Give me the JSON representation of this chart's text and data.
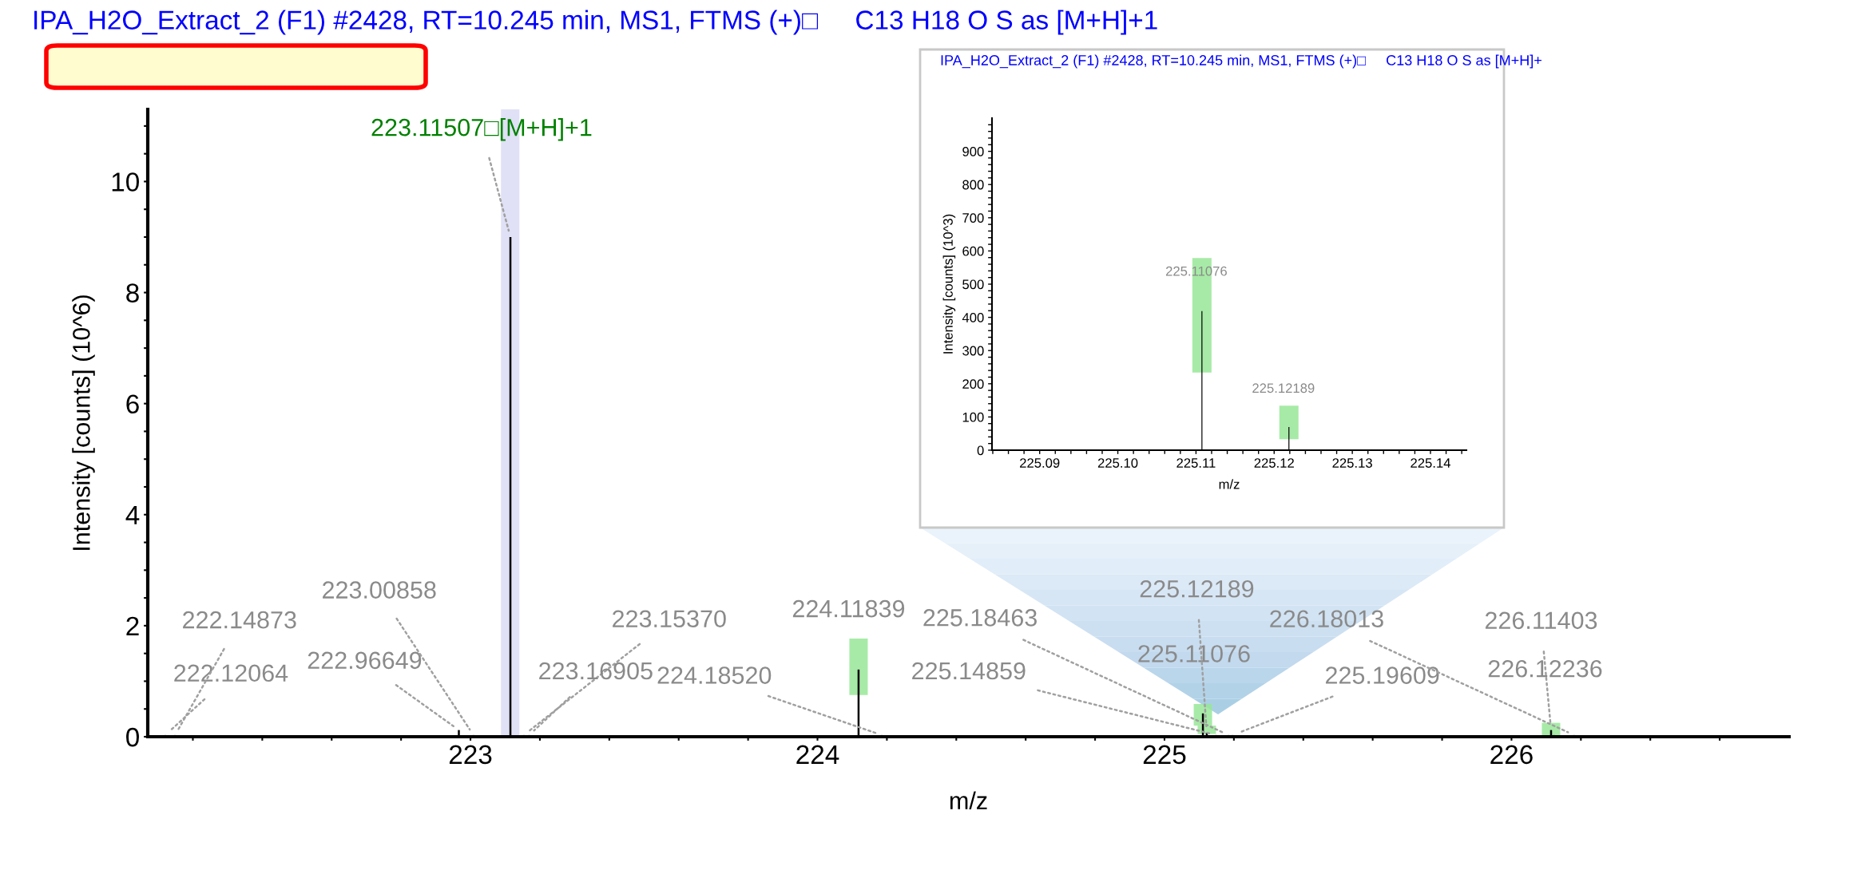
{
  "chart_data": [
    {
      "type": "bar",
      "title": "IPA_H2O_Extract_2 (F1) #2428, RT=10.245 min, MS1, FTMS (+)□     C13 H18 O S as [M+H]+1",
      "xlabel": "m/z",
      "ylabel": "Intensity [counts] (10^6)",
      "xlim": [
        222.07,
        226.8
      ],
      "ylim": [
        0,
        11.3
      ],
      "xticks": [
        {
          "value": 222.2,
          "label": null
        },
        {
          "value": 222.4,
          "label": null
        },
        {
          "value": 222.6,
          "label": null
        },
        {
          "value": 222.8,
          "label": null
        },
        223,
        {
          "value": 223.2,
          "label": null
        },
        {
          "value": 223.4,
          "label": null
        },
        {
          "value": 223.6,
          "label": null
        },
        {
          "value": 223.8,
          "label": null
        },
        224,
        {
          "value": 224.2,
          "label": null
        },
        {
          "value": 224.4,
          "label": null
        },
        {
          "value": 224.6,
          "label": null
        },
        {
          "value": 224.8,
          "label": null
        },
        225,
        {
          "value": 225.2,
          "label": null
        },
        {
          "value": 225.4,
          "label": null
        },
        {
          "value": 225.6,
          "label": null
        },
        {
          "value": 225.8,
          "label": null
        },
        226,
        {
          "value": 226.2,
          "label": null
        },
        {
          "value": 226.4,
          "label": null
        },
        {
          "value": 226.6,
          "label": null
        }
      ],
      "yticks": [
        0,
        {
          "value": 0.5,
          "label": null
        },
        {
          "value": 1,
          "label": null
        },
        {
          "value": 1.5,
          "label": null
        },
        2,
        {
          "value": 2.5,
          "label": null
        },
        {
          "value": 3,
          "label": null
        },
        {
          "value": 3.5,
          "label": null
        },
        4,
        {
          "value": 4.5,
          "label": null
        },
        {
          "value": 5,
          "label": null
        },
        {
          "value": 5.5,
          "label": null
        },
        6,
        {
          "value": 6.5,
          "label": null
        },
        {
          "value": 7,
          "label": null
        },
        {
          "value": 7.5,
          "label": null
        },
        8,
        {
          "value": 8.5,
          "label": null
        },
        {
          "value": 9,
          "label": null
        },
        {
          "value": 9.5,
          "label": null
        },
        10,
        {
          "value": 10.5,
          "label": null
        },
        {
          "value": 11,
          "label": null
        }
      ],
      "bands": [
        {
          "axis": "x",
          "from": 223.088,
          "to": 223.141,
          "color": "#e0e0f6"
        }
      ],
      "series": [
        {
          "color": "#98e698",
          "x": [
            224.11839,
            225.11076,
            225.12189,
            226.11403
          ],
          "base": [
            0.75,
            0.2,
            0.05,
            0.0
          ],
          "values": [
            1.02,
            0.39,
            0.15,
            0.25
          ]
        },
        {
          "color": "#000000",
          "x": [
            222.12064,
            222.14873,
            222.96649,
            223.00858,
            223.11507,
            223.1537,
            223.16905,
            224.11839,
            224.1852,
            225.11076,
            225.12189,
            225.14859,
            225.18463,
            225.19609,
            226.11403,
            226.12236,
            226.18013
          ],
          "values": [
            0.03,
            0.03,
            0.12,
            0.03,
            9.0,
            0.03,
            0.03,
            1.21,
            0.03,
            0.42,
            0.07,
            0.03,
            0.03,
            0.03,
            0.12,
            0.03,
            0.03
          ]
        }
      ],
      "annotations": [
        {
          "text": "222.12064",
          "x": 222.12064,
          "y": 0.03
        },
        {
          "text": "222.14873",
          "x": 222.14873,
          "y": 0.03
        },
        {
          "text": "222.96649",
          "x": 222.96649,
          "y": 0.12
        },
        {
          "text": "223.00858",
          "x": 223.00858,
          "y": 0.03
        },
        {
          "text": "223.11507□[M+H]+1",
          "x": 223.11507,
          "y": 9.0
        },
        {
          "text": "223.15370",
          "x": 223.1537,
          "y": 0.03
        },
        {
          "text": "223.16905",
          "x": 223.16905,
          "y": 0.03
        },
        {
          "text": "224.11839",
          "x": 224.11839,
          "y": 1.21
        },
        {
          "text": "224.18520",
          "x": 224.1852,
          "y": 0.03
        },
        {
          "text": "225.11076",
          "x": 225.11076,
          "y": 0.42
        },
        {
          "text": "225.12189",
          "x": 225.12189,
          "y": 0.07
        },
        {
          "text": "225.14859",
          "x": 225.14859,
          "y": 0.03
        },
        {
          "text": "225.18463",
          "x": 225.18463,
          "y": 0.03
        },
        {
          "text": "225.19609",
          "x": 225.19609,
          "y": 0.03
        },
        {
          "text": "226.11403",
          "x": 226.11403,
          "y": 0.12
        },
        {
          "text": "226.12236",
          "x": 226.12236,
          "y": 0.03
        },
        {
          "text": "226.18013",
          "x": 226.18013,
          "y": 0.03
        }
      ]
    },
    {
      "type": "bar",
      "title": "IPA_H2O_Extract_2 (F1) #2428, RT=10.245 min, MS1, FTMS (+)□     C13 H18 O S as [M+H]+",
      "xlabel": "m/z",
      "ylabel": "Intensity [counts] (10^3)",
      "xlim": [
        225.0839,
        225.1446
      ],
      "ylim": [
        0,
        1000
      ],
      "xticks": [
        {
          "value": 225.084,
          "label": null
        },
        {
          "value": 225.086,
          "label": null
        },
        {
          "value": 225.088,
          "label": null
        },
        {
          "value": 225.09,
          "label": "225.09"
        },
        {
          "value": 225.092,
          "label": null
        },
        {
          "value": 225.094,
          "label": null
        },
        {
          "value": 225.096,
          "label": null
        },
        {
          "value": 225.098,
          "label": null
        },
        {
          "value": 225.1,
          "label": "225.10"
        },
        {
          "value": 225.102,
          "label": null
        },
        {
          "value": 225.104,
          "label": null
        },
        {
          "value": 225.106,
          "label": null
        },
        {
          "value": 225.108,
          "label": null
        },
        {
          "value": 225.11,
          "label": "225.11"
        },
        {
          "value": 225.112,
          "label": null
        },
        {
          "value": 225.114,
          "label": null
        },
        {
          "value": 225.116,
          "label": null
        },
        {
          "value": 225.118,
          "label": null
        },
        {
          "value": 225.12,
          "label": "225.12"
        },
        {
          "value": 225.122,
          "label": null
        },
        {
          "value": 225.124,
          "label": null
        },
        {
          "value": 225.126,
          "label": null
        },
        {
          "value": 225.128,
          "label": null
        },
        {
          "value": 225.13,
          "label": "225.13"
        },
        {
          "value": 225.132,
          "label": null
        },
        {
          "value": 225.134,
          "label": null
        },
        {
          "value": 225.136,
          "label": null
        },
        {
          "value": 225.138,
          "label": null
        },
        {
          "value": 225.14,
          "label": "225.14"
        },
        {
          "value": 225.142,
          "label": null
        },
        {
          "value": 225.144,
          "label": null
        }
      ],
      "yticks": [
        0,
        {
          "value": 20,
          "label": null
        },
        {
          "value": 40,
          "label": null
        },
        {
          "value": 60,
          "label": null
        },
        {
          "value": 80,
          "label": null
        },
        100,
        {
          "value": 120,
          "label": null
        },
        {
          "value": 140,
          "label": null
        },
        {
          "value": 160,
          "label": null
        },
        {
          "value": 180,
          "label": null
        },
        200,
        {
          "value": 220,
          "label": null
        },
        {
          "value": 240,
          "label": null
        },
        {
          "value": 260,
          "label": null
        },
        {
          "value": 280,
          "label": null
        },
        300,
        {
          "value": 320,
          "label": null
        },
        {
          "value": 340,
          "label": null
        },
        {
          "value": 360,
          "label": null
        },
        {
          "value": 380,
          "label": null
        },
        400,
        {
          "value": 420,
          "label": null
        },
        {
          "value": 440,
          "label": null
        },
        {
          "value": 460,
          "label": null
        },
        {
          "value": 480,
          "label": null
        },
        500,
        {
          "value": 520,
          "label": null
        },
        {
          "value": 540,
          "label": null
        },
        {
          "value": 560,
          "label": null
        },
        {
          "value": 580,
          "label": null
        },
        600,
        {
          "value": 620,
          "label": null
        },
        {
          "value": 640,
          "label": null
        },
        {
          "value": 660,
          "label": null
        },
        {
          "value": 680,
          "label": null
        },
        700,
        {
          "value": 720,
          "label": null
        },
        {
          "value": 740,
          "label": null
        },
        {
          "value": 760,
          "label": null
        },
        {
          "value": 780,
          "label": null
        },
        800,
        {
          "value": 820,
          "label": null
        },
        {
          "value": 840,
          "label": null
        },
        {
          "value": 860,
          "label": null
        },
        {
          "value": 880,
          "label": null
        },
        900,
        {
          "value": 920,
          "label": null
        },
        {
          "value": 940,
          "label": null
        },
        {
          "value": 960,
          "label": null
        },
        {
          "value": 980,
          "label": null
        }
      ],
      "series": [
        {
          "color": "#98e698",
          "x": [
            225.11076,
            225.12189
          ],
          "base": [
            234,
            33
          ],
          "values": [
            345,
            101
          ]
        },
        {
          "color": "#000000",
          "x": [
            225.11076,
            225.12189
          ],
          "values": [
            419,
            70
          ]
        }
      ],
      "annotations": [
        {
          "text": "225.11076",
          "x": 225.11076,
          "y": 419
        },
        {
          "text": "225.12189",
          "x": 225.12189,
          "y": 70
        }
      ]
    }
  ]
}
